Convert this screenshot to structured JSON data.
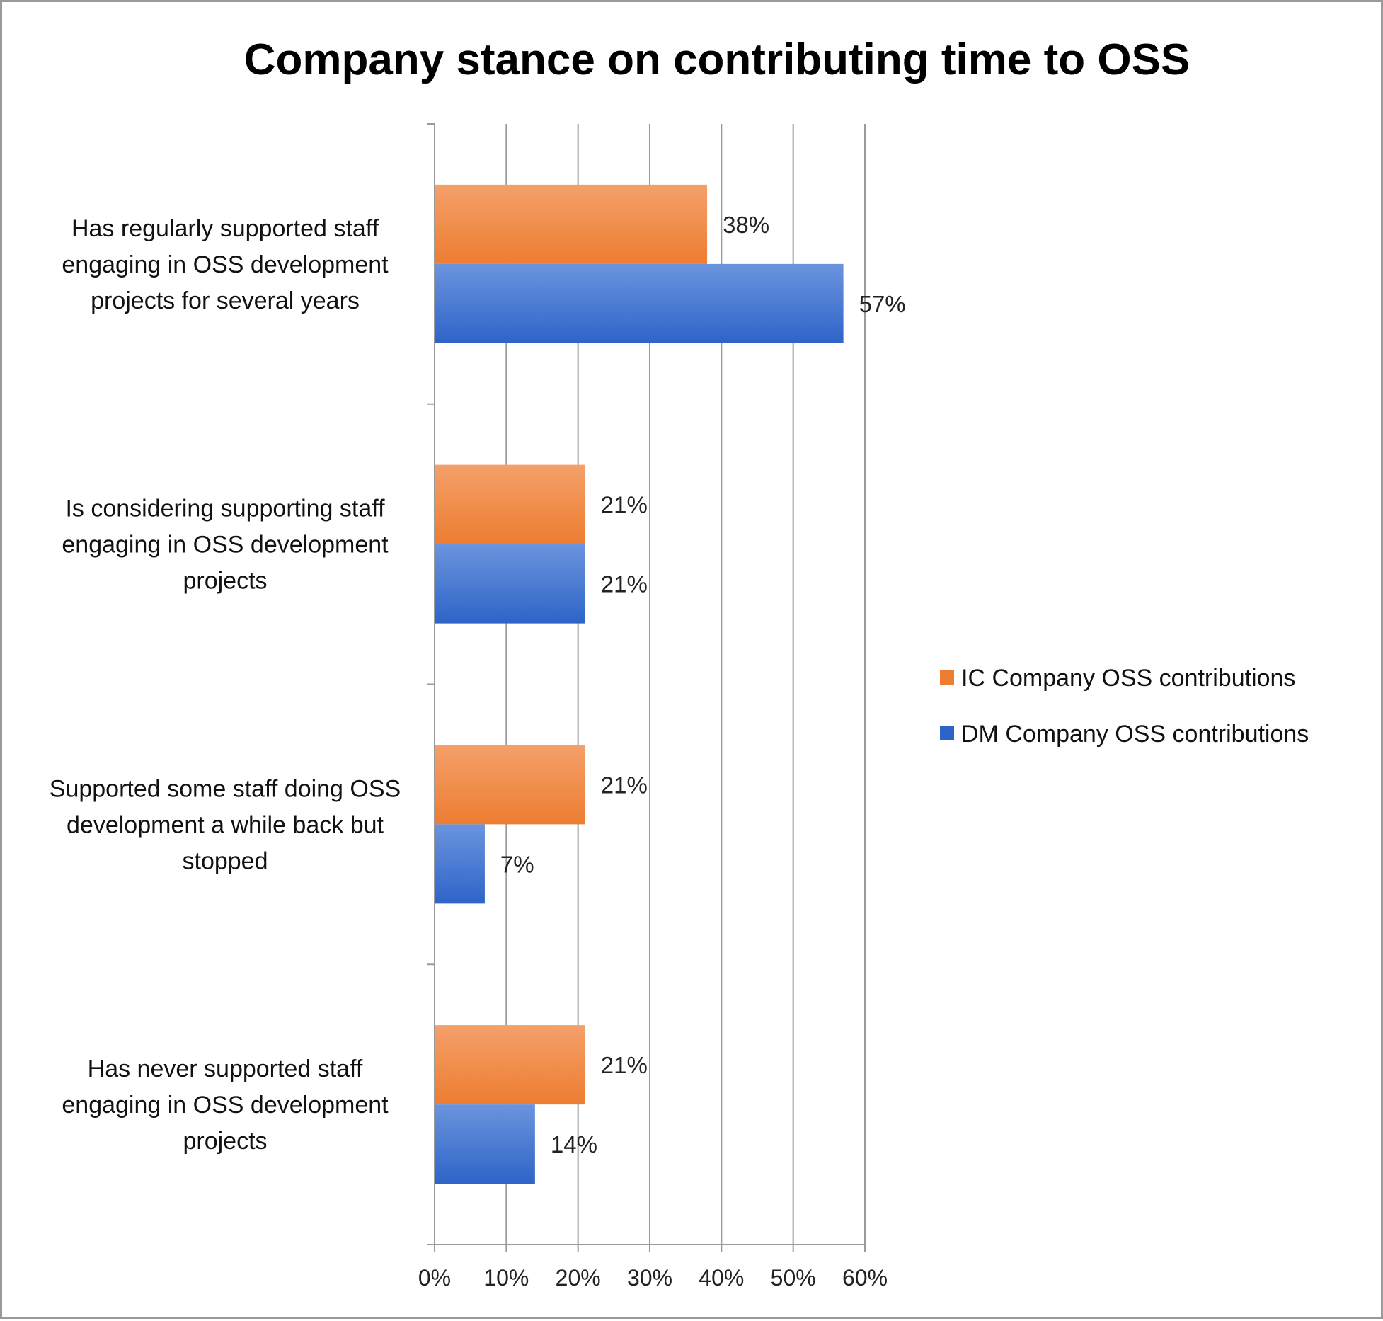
{
  "chart_data": {
    "type": "bar",
    "orientation": "horizontal",
    "title": "Company stance on contributing time to OSS",
    "xlabel": "",
    "ylabel": "",
    "xlim": [
      0,
      60
    ],
    "x_ticks": [
      "0%",
      "10%",
      "20%",
      "30%",
      "40%",
      "50%",
      "60%"
    ],
    "grid": "vertical",
    "legend_position": "right",
    "categories": [
      [
        "Has regularly supported staff",
        "engaging in OSS development",
        "projects for several years"
      ],
      [
        "Is considering supporting staff",
        "engaging in OSS development",
        "projects"
      ],
      [
        "Supported some staff doing OSS",
        "development a while back but",
        "stopped"
      ],
      [
        "Has never supported staff",
        "engaging in OSS development",
        "projects"
      ]
    ],
    "series": [
      {
        "name": "IC Company OSS contributions",
        "color": "#ed7d31",
        "color_light": "#f4a06a",
        "values": [
          38,
          21,
          21,
          21
        ],
        "labels": [
          "38%",
          "21%",
          "21%",
          "21%"
        ]
      },
      {
        "name": "DM Company OSS  contributions",
        "color": "#2e64c8",
        "color_light": "#6b94de",
        "values": [
          57,
          21,
          7,
          14
        ],
        "labels": [
          "57%",
          "21%",
          "7%",
          "14%"
        ]
      }
    ]
  }
}
